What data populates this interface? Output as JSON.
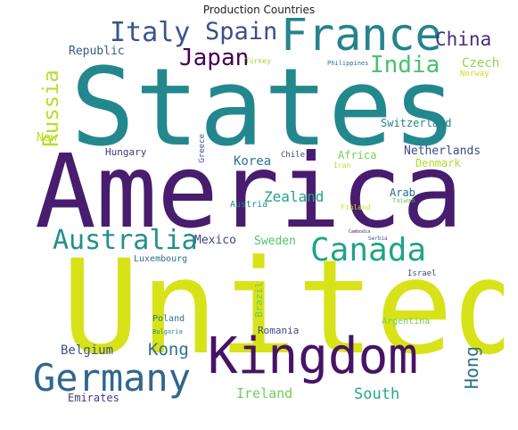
{
  "title": "Production Countries",
  "words": [
    {
      "text": "United",
      "color": "#d8e219"
    },
    {
      "text": "States",
      "color": "#23888e"
    },
    {
      "text": "America",
      "color": "#481c6e"
    },
    {
      "text": "Kingdom",
      "color": "#471365"
    },
    {
      "text": "France",
      "color": "#25848e"
    },
    {
      "text": "Germany",
      "color": "#31668e"
    },
    {
      "text": "Canada",
      "color": "#20a386"
    },
    {
      "text": "Australia",
      "color": "#218f8d"
    },
    {
      "text": "Italy",
      "color": "#3a548c"
    },
    {
      "text": "Spain",
      "color": "#3d4e8a"
    },
    {
      "text": "Japan",
      "color": "#440154"
    },
    {
      "text": "India",
      "color": "#48c16e"
    },
    {
      "text": "China",
      "color": "#472d7b"
    },
    {
      "text": "Russia",
      "color": "#b5de2b"
    },
    {
      "text": "Republic",
      "color": "#375b8d"
    },
    {
      "text": "Czech",
      "color": "#8bd646"
    },
    {
      "text": "Norway",
      "color": "#c8e020"
    },
    {
      "text": "Switzerland",
      "color": "#26828e"
    },
    {
      "text": "Netherlands",
      "color": "#3e4a89"
    },
    {
      "text": "Denmark",
      "color": "#addc30"
    },
    {
      "text": "Korea",
      "color": "#2a788e"
    },
    {
      "text": "Zealand",
      "color": "#20a386"
    },
    {
      "text": "New",
      "color": "#bddf26"
    },
    {
      "text": "Hungary",
      "color": "#46337e"
    },
    {
      "text": "Greece",
      "color": "#3b528b"
    },
    {
      "text": "Chile",
      "color": "#404387"
    },
    {
      "text": "Africa",
      "color": "#75d054"
    },
    {
      "text": "Arab",
      "color": "#306a8e"
    },
    {
      "text": "Austria",
      "color": "#238a8d"
    },
    {
      "text": "Mexico",
      "color": "#3f4788"
    },
    {
      "text": "Sweden",
      "color": "#52c569"
    },
    {
      "text": "Luxembourg",
      "color": "#2d708e"
    },
    {
      "text": "Brazil",
      "color": "#67cc5c"
    },
    {
      "text": "Israel",
      "color": "#414487"
    },
    {
      "text": "Poland",
      "color": "#2c728e"
    },
    {
      "text": "Romania",
      "color": "#3e4a89"
    },
    {
      "text": "Argentina",
      "color": "#6ccd5a"
    },
    {
      "text": "Belgium",
      "color": "#3b528b"
    },
    {
      "text": "Bulgaria",
      "color": "#25858e"
    },
    {
      "text": "Kong",
      "color": "#2c718e"
    },
    {
      "text": "Hong",
      "color": "#2d708e"
    },
    {
      "text": "Emirates",
      "color": "#443a83"
    },
    {
      "text": "Ireland",
      "color": "#71cf57"
    },
    {
      "text": "South",
      "color": "#22a884"
    },
    {
      "text": "Turkey",
      "color": "#a2da37"
    },
    {
      "text": "Philippines",
      "color": "#2e6e8e"
    },
    {
      "text": "Finland",
      "color": "#d2e21b"
    },
    {
      "text": "Iran",
      "color": "#b8de29"
    },
    {
      "text": "Taiwan",
      "color": "#5cc863"
    },
    {
      "text": "Serbia",
      "color": "#3b528b"
    },
    {
      "text": "Cambodia",
      "color": "#482576"
    }
  ]
}
